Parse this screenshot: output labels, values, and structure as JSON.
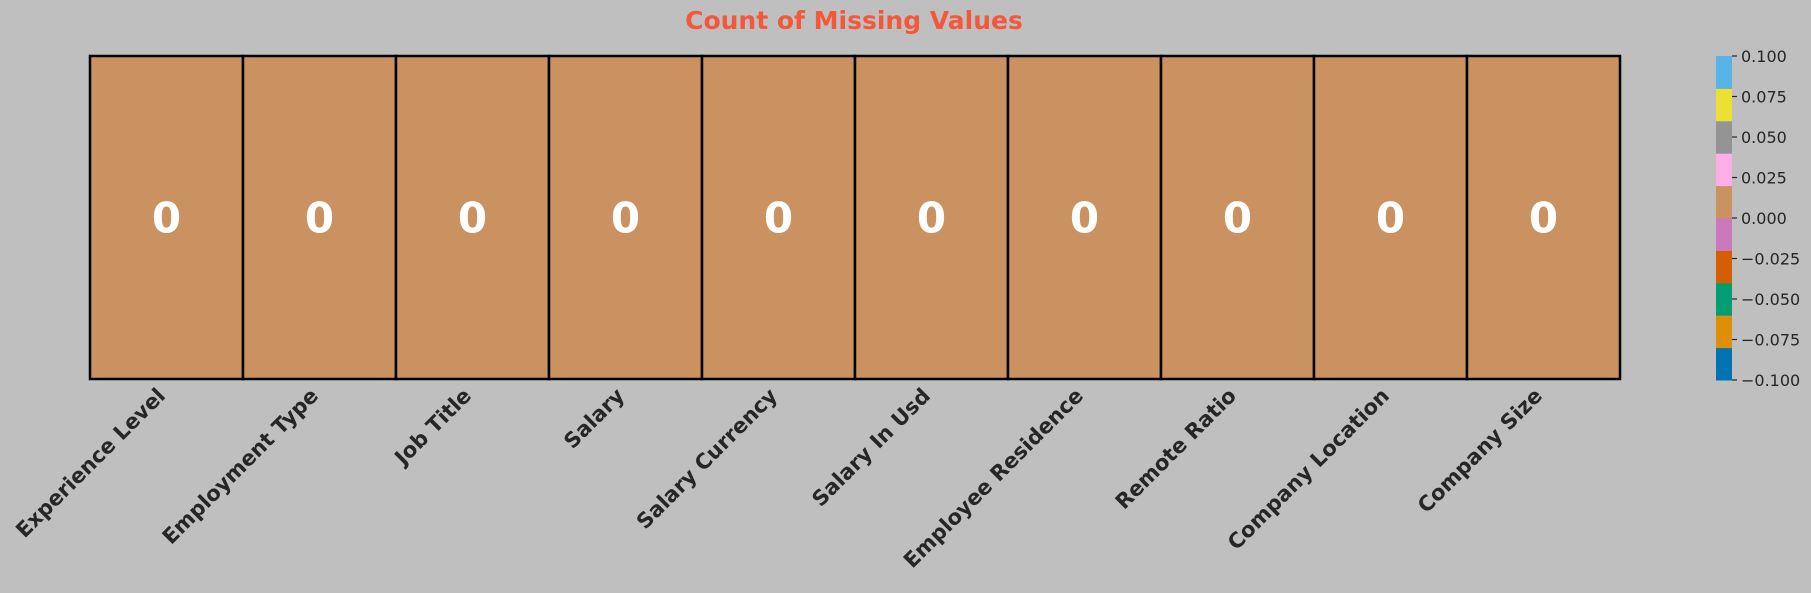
{
  "chart_data": {
    "type": "heatmap",
    "title": "Count of Missing Values",
    "columns": [
      "Experience Level",
      "Employment Type",
      "Job Title",
      "Salary",
      "Salary Currency",
      "Salary In Usd",
      "Employee Residence",
      "Remote Ratio",
      "Company Location",
      "Company Size"
    ],
    "values": [
      0,
      0,
      0,
      0,
      0,
      0,
      0,
      0,
      0,
      0
    ],
    "value_labels": [
      "0",
      "0",
      "0",
      "0",
      "0",
      "0",
      "0",
      "0",
      "0",
      "0"
    ],
    "colorbar": {
      "range": [
        -0.1,
        0.1
      ],
      "ticks": [
        0.1,
        0.075,
        0.05,
        0.025,
        0.0,
        -0.025,
        -0.05,
        -0.075,
        -0.1
      ],
      "tick_labels": [
        "0.100",
        "0.075",
        "0.050",
        "0.025",
        "0.000",
        "−0.025",
        "−0.050",
        "−0.075",
        "−0.100"
      ],
      "colors_bottom_to_top": [
        "#0173b2",
        "#de8f05",
        "#029e73",
        "#d55e00",
        "#cc78bc",
        "#ca9161",
        "#fbafe4",
        "#949494",
        "#ece133",
        "#56b4e9"
      ]
    },
    "colors": {
      "title": "#f4573a",
      "background": "#bfbfbf",
      "cell_border": "#000000",
      "cell_text": "#ffffff",
      "axis_text": "#262626"
    }
  }
}
